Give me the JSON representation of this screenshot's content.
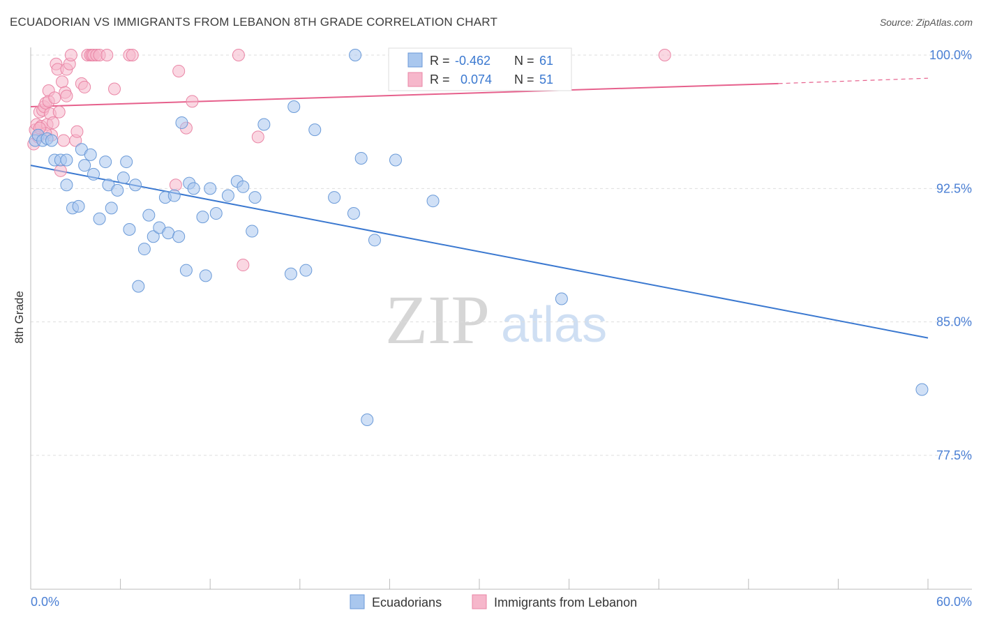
{
  "title": "ECUADORIAN VS IMMIGRANTS FROM LEBANON 8TH GRADE CORRELATION CHART",
  "source": "Source: ZipAtlas.com",
  "watermark": {
    "zip": "ZIP",
    "atlas": "atlas"
  },
  "colors": {
    "blue_fill": "#a9c7ee",
    "blue_stroke": "#6a9ad8",
    "blue_line": "#3a78d0",
    "pink_fill": "#f6b7cb",
    "pink_stroke": "#ea86a6",
    "pink_line": "#e6608c",
    "grid": "#dddddd",
    "axis_label": "#4a7fd4"
  },
  "chart_data": {
    "type": "scatter",
    "title": "ECUADORIAN VS IMMIGRANTS FROM LEBANON 8TH GRADE CORRELATION CHART",
    "xlabel": "",
    "ylabel": "8th Grade",
    "xlim": [
      0,
      60
    ],
    "ylim": [
      70.5,
      101.0
    ],
    "x_tick_labels": {
      "left": "0.0%",
      "right": "60.0%"
    },
    "y_ticks": [
      100.0,
      92.5,
      85.0,
      77.5
    ],
    "y_tick_labels": [
      "100.0%",
      "92.5%",
      "85.0%",
      "77.5%"
    ],
    "legend": {
      "rows": [
        {
          "r_label": "R =",
          "r_value": "-0.462",
          "n_label": "N =",
          "n_value": "61"
        },
        {
          "r_label": "R =",
          "r_value": "0.074",
          "n_label": "N =",
          "n_value": "51"
        }
      ]
    },
    "series": [
      {
        "name": "Ecuadorians",
        "color": "#a9c7ee",
        "trend": {
          "x0": 0,
          "y0": 93.8,
          "x1": 60,
          "y1": 84.1
        },
        "points": [
          [
            0.3,
            95.2
          ],
          [
            0.5,
            95.5
          ],
          [
            0.8,
            95.2
          ],
          [
            1.1,
            95.3
          ],
          [
            1.4,
            95.2
          ],
          [
            1.6,
            94.1
          ],
          [
            2.0,
            94.1
          ],
          [
            2.4,
            94.1
          ],
          [
            2.4,
            92.7
          ],
          [
            2.8,
            91.4
          ],
          [
            3.2,
            91.5
          ],
          [
            3.4,
            94.7
          ],
          [
            3.6,
            93.8
          ],
          [
            4.0,
            94.4
          ],
          [
            4.2,
            93.3
          ],
          [
            4.6,
            90.8
          ],
          [
            5.0,
            94.0
          ],
          [
            5.2,
            92.7
          ],
          [
            5.4,
            91.4
          ],
          [
            5.8,
            92.4
          ],
          [
            6.2,
            93.1
          ],
          [
            6.4,
            94.0
          ],
          [
            6.6,
            90.2
          ],
          [
            7.0,
            92.7
          ],
          [
            7.2,
            87.0
          ],
          [
            7.6,
            89.1
          ],
          [
            7.9,
            91.0
          ],
          [
            8.2,
            89.8
          ],
          [
            8.6,
            90.3
          ],
          [
            9.0,
            92.0
          ],
          [
            9.2,
            90.0
          ],
          [
            9.6,
            92.1
          ],
          [
            9.9,
            89.8
          ],
          [
            10.1,
            96.2
          ],
          [
            10.4,
            87.9
          ],
          [
            10.6,
            92.8
          ],
          [
            10.9,
            92.5
          ],
          [
            11.5,
            90.9
          ],
          [
            11.7,
            87.6
          ],
          [
            12.0,
            92.5
          ],
          [
            12.4,
            91.1
          ],
          [
            13.2,
            92.1
          ],
          [
            13.8,
            92.9
          ],
          [
            14.2,
            92.6
          ],
          [
            14.8,
            90.1
          ],
          [
            15.0,
            92.0
          ],
          [
            15.6,
            96.1
          ],
          [
            17.4,
            87.7
          ],
          [
            17.6,
            97.1
          ],
          [
            18.4,
            87.9
          ],
          [
            19.0,
            95.8
          ],
          [
            20.3,
            92.0
          ],
          [
            21.6,
            91.1
          ],
          [
            21.7,
            100.0
          ],
          [
            22.1,
            94.2
          ],
          [
            22.5,
            79.5
          ],
          [
            23.0,
            89.6
          ],
          [
            24.4,
            94.1
          ],
          [
            26.9,
            91.8
          ],
          [
            35.5,
            86.3
          ],
          [
            59.6,
            81.2
          ]
        ]
      },
      {
        "name": "Immigrants from Lebanon",
        "color": "#f6b7cb",
        "trend": {
          "x0": 0,
          "y0": 97.1,
          "x1": 50,
          "y1": 98.4
        },
        "trend_dashed": {
          "x0": 50,
          "y0": 98.4,
          "x1": 60,
          "y1": 98.7
        },
        "points": [
          [
            0.2,
            95.0
          ],
          [
            0.3,
            95.8
          ],
          [
            0.4,
            96.1
          ],
          [
            0.5,
            95.4
          ],
          [
            0.6,
            96.8
          ],
          [
            0.7,
            96.0
          ],
          [
            0.8,
            96.9
          ],
          [
            0.9,
            97.1
          ],
          [
            1.0,
            97.3
          ],
          [
            1.1,
            96.1
          ],
          [
            1.2,
            98.0
          ],
          [
            1.2,
            97.4
          ],
          [
            1.3,
            96.7
          ],
          [
            1.4,
            95.5
          ],
          [
            1.5,
            96.2
          ],
          [
            1.6,
            97.6
          ],
          [
            1.7,
            99.5
          ],
          [
            1.8,
            99.2
          ],
          [
            1.9,
            96.8
          ],
          [
            2.0,
            93.5
          ],
          [
            2.1,
            98.5
          ],
          [
            2.2,
            95.2
          ],
          [
            2.3,
            97.9
          ],
          [
            2.4,
            97.7
          ],
          [
            2.4,
            99.2
          ],
          [
            2.6,
            99.5
          ],
          [
            2.7,
            100.0
          ],
          [
            3.0,
            95.2
          ],
          [
            3.1,
            95.7
          ],
          [
            3.4,
            98.4
          ],
          [
            3.6,
            98.2
          ],
          [
            3.8,
            100.0
          ],
          [
            4.0,
            100.0
          ],
          [
            4.1,
            100.0
          ],
          [
            4.2,
            100.0
          ],
          [
            4.4,
            100.0
          ],
          [
            4.6,
            100.0
          ],
          [
            5.1,
            100.0
          ],
          [
            5.6,
            98.1
          ],
          [
            6.6,
            100.0
          ],
          [
            6.8,
            100.0
          ],
          [
            9.7,
            92.7
          ],
          [
            9.9,
            99.1
          ],
          [
            10.4,
            95.9
          ],
          [
            10.8,
            97.4
          ],
          [
            13.9,
            100.0
          ],
          [
            14.2,
            88.2
          ],
          [
            15.2,
            95.4
          ],
          [
            42.4,
            100.0
          ],
          [
            1.0,
            95.6
          ],
          [
            0.6,
            95.9
          ]
        ]
      }
    ]
  }
}
